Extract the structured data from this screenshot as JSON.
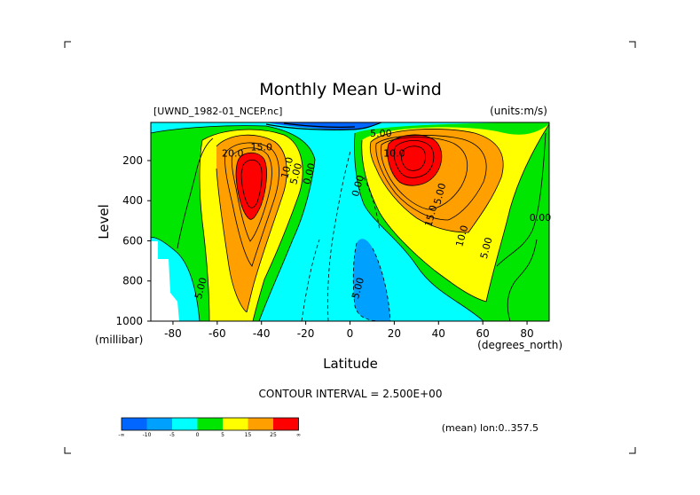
{
  "chart_data": {
    "type": "contour",
    "title": "Monthly Mean U-wind",
    "dataset_label": "[UWND_1982-01_NCEP.nc]",
    "units_label": "(units:m/s)",
    "xlabel": "Latitude",
    "ylabel": "Level",
    "x_units": "(degrees_north)",
    "y_units": "(millibar)",
    "xlim": [
      -90,
      90
    ],
    "ylim": [
      1000,
      10
    ],
    "x_ticks": [
      -80,
      -60,
      -40,
      -20,
      0,
      20,
      40,
      60,
      80
    ],
    "y_ticks": [
      1000,
      800,
      600,
      400,
      200
    ],
    "contour_interval_text": "CONTOUR INTERVAL = 2.500E+00",
    "footer_note": "(mean) lon:0..357.5",
    "contour_labels": [
      {
        "text": "20.0",
        "lat": -53,
        "lev": 180
      },
      {
        "text": "15.0",
        "lat": -40,
        "lev": 150
      },
      {
        "text": "10.0",
        "lat": -27,
        "lev": 240
      },
      {
        "text": "5.00",
        "lat": -23,
        "lev": 270
      },
      {
        "text": "0.00",
        "lat": -17,
        "lev": 270
      },
      {
        "text": "0.00",
        "lat": 5,
        "lev": 330
      },
      {
        "text": "5.00",
        "lat": 42,
        "lev": 370
      },
      {
        "text": "5.00",
        "lat": -66,
        "lev": 840
      },
      {
        "text": "5.00",
        "lat": 5,
        "lev": 840
      },
      {
        "text": "15.0",
        "lat": 38,
        "lev": 480
      },
      {
        "text": "10.0",
        "lat": 52,
        "lev": 580
      },
      {
        "text": "5.00",
        "lat": 63,
        "lev": 640
      },
      {
        "text": "0.00",
        "lat": 86,
        "lev": 500
      },
      {
        "text": "5.00",
        "lat": 14,
        "lev": 80
      },
      {
        "text": "10.0",
        "lat": 20,
        "lev": 180
      }
    ],
    "colorbar": {
      "colors": [
        "#0066ff",
        "#00a0ff",
        "#00ffff",
        "#00e600",
        "#ffff00",
        "#ffa000",
        "#ff0000"
      ],
      "tick_labels": [
        "-∞",
        "-10",
        "-5",
        "0",
        "5",
        "15",
        "25",
        "∞"
      ]
    }
  }
}
